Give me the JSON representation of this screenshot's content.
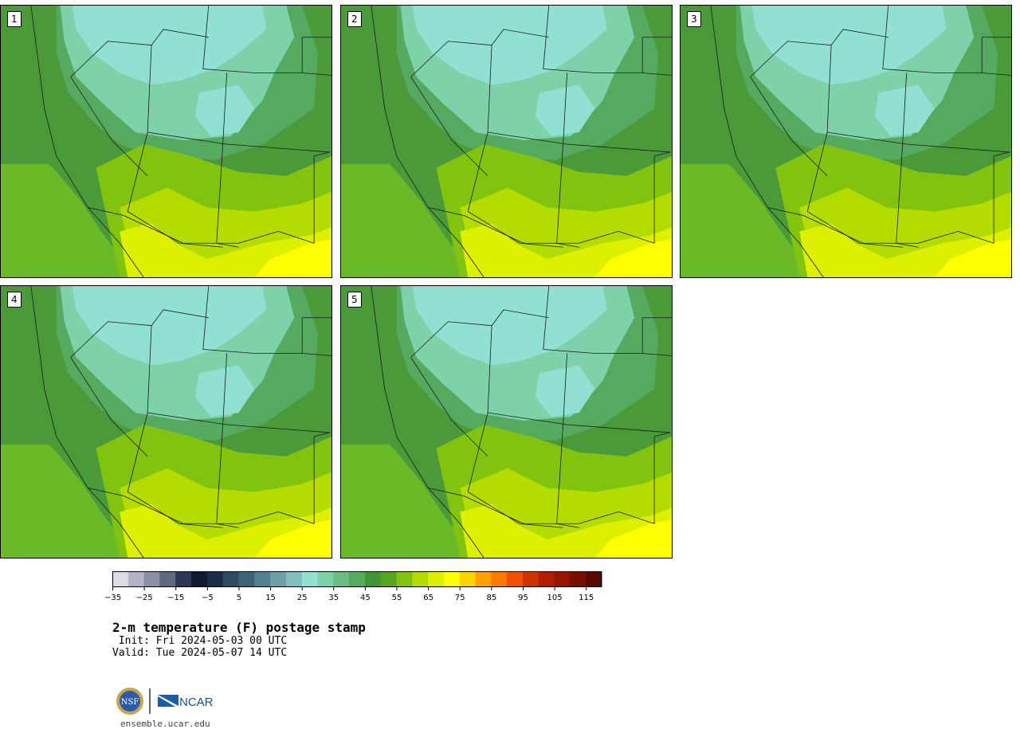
{
  "panels": [
    {
      "label": "1"
    },
    {
      "label": "2"
    },
    {
      "label": "3"
    },
    {
      "label": "4"
    },
    {
      "label": "5"
    }
  ],
  "colorbar": {
    "colors": [
      "#dcdce6",
      "#b4b4c8",
      "#8c91a5",
      "#5f6982",
      "#2d3755",
      "#0f1932",
      "#1e2d46",
      "#2d4b5f",
      "#3c6478",
      "#558291",
      "#6ea0aa",
      "#82bebe",
      "#91e1d2",
      "#7dd2aa",
      "#69be82",
      "#55aa5f",
      "#419637",
      "#55a521",
      "#82c30f",
      "#b4dc00",
      "#dcf000",
      "#ffff00",
      "#ffd200",
      "#ffa000",
      "#ff7800",
      "#f05000",
      "#d23200",
      "#b41e00",
      "#961400",
      "#781000",
      "#5a0a05"
    ],
    "tick_labels": [
      "−35",
      "−25",
      "−15",
      "−5",
      "5",
      "15",
      "25",
      "35",
      "45",
      "55",
      "65",
      "75",
      "85",
      "95",
      "105",
      "115"
    ]
  },
  "title": "2-m temperature (F) postage stamp",
  "init_line": " Init: Fri 2024-05-03 00 UTC",
  "valid_line": "Valid: Tue 2024-05-07 14 UTC",
  "logos": {
    "nsf": "NSF",
    "ncar": "NCAR"
  },
  "website": "ensemble.ucar.edu"
}
